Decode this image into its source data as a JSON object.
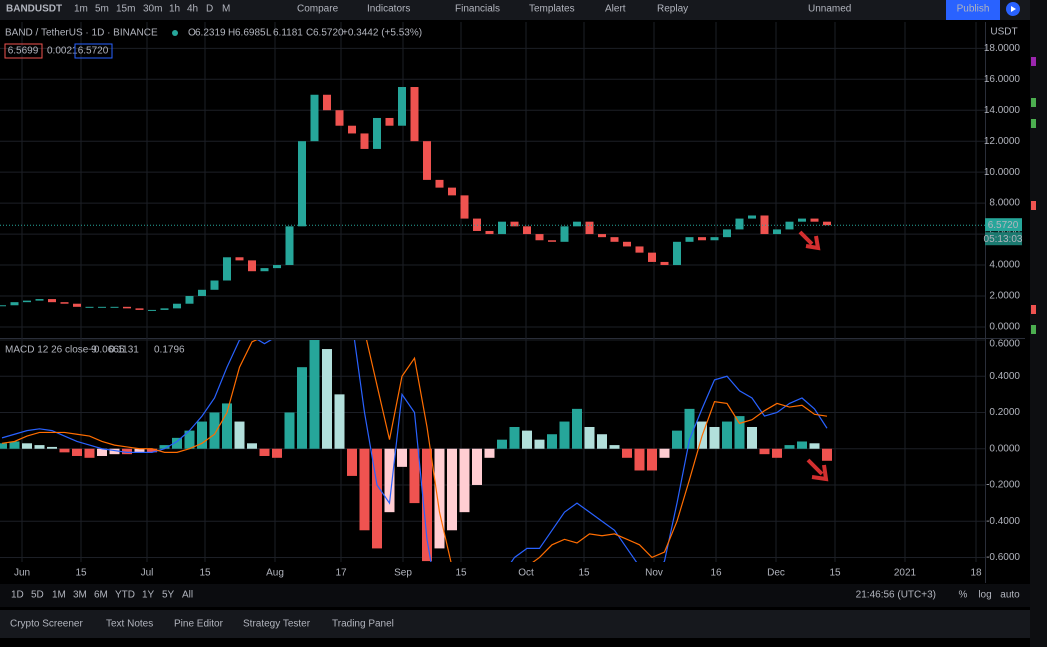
{
  "toolbar": {
    "symbol": "BANDUSDT",
    "intervals": [
      "1m",
      "5m",
      "15m",
      "30m",
      "1h",
      "4h",
      "D",
      "M"
    ],
    "active_interval": "D",
    "buttons": [
      "Compare",
      "Indicators",
      "Financials",
      "Templates",
      "Alert",
      "Replay"
    ],
    "layout_name": "Unnamed",
    "publish": "Publish"
  },
  "legend": {
    "title": "BAND / TetherUS · 1D · BINANCE",
    "ohlc": [
      {
        "label": "O",
        "value": "6.2319"
      },
      {
        "label": "H",
        "value": "6.6985"
      },
      {
        "label": "L",
        "value": "6.1181"
      },
      {
        "label": "C",
        "value": "6.5720"
      }
    ],
    "change": "+0.3442 (+5.53%)",
    "bid": "6.5699",
    "spread": "0.0021",
    "ask": "6.5720"
  },
  "price_chart": {
    "type": "candlestick",
    "currency": "USDT",
    "up_color": "#26a69a",
    "down_color": "#ef5350",
    "closes": [
      1.4,
      1.6,
      1.7,
      1.8,
      1.6,
      1.5,
      1.3,
      1.3,
      1.3,
      1.3,
      1.2,
      1.1,
      1.1,
      1.2,
      1.5,
      2.0,
      2.4,
      3.0,
      4.5,
      4.3,
      3.6,
      3.8,
      4.0,
      6.5,
      12.0,
      15.0,
      14.0,
      13.0,
      12.5,
      11.5,
      13.5,
      13.0,
      15.5,
      12.0,
      9.5,
      9.0,
      8.5,
      7.0,
      6.2,
      6.0,
      6.8,
      6.5,
      6.0,
      5.6,
      5.5,
      6.5,
      6.8,
      6.0,
      5.8,
      5.5,
      5.2,
      4.8,
      4.2,
      4.0,
      5.5,
      5.8,
      5.6,
      5.8,
      6.3,
      7.0,
      7.2,
      6.0,
      6.3,
      6.8,
      7.0,
      6.8,
      6.572
    ],
    "ylim": [
      -0.65,
      19.7
    ],
    "yticks": [
      {
        "value": 18,
        "label": "18.0000"
      },
      {
        "value": 16,
        "label": "16.0000"
      },
      {
        "value": 14,
        "label": "14.0000"
      },
      {
        "value": 12,
        "label": "12.0000"
      },
      {
        "value": 10,
        "label": "10.0000"
      },
      {
        "value": 8,
        "label": "8.0000"
      },
      {
        "value": 6,
        "label": "6.0000"
      },
      {
        "value": 4,
        "label": "4.0000"
      },
      {
        "value": 2,
        "label": "2.0000"
      },
      {
        "value": 0,
        "label": "0.0000"
      }
    ],
    "last_price": {
      "value": 6.572,
      "label": "6.5720"
    },
    "countdown": "05:13:03"
  },
  "macd": {
    "type": "macd",
    "title": "MACD 12 26 close 9",
    "legend_values": [
      "−0.0665",
      "0.1131",
      "0.1796"
    ],
    "macd_color": "#2962ff",
    "signal_color": "#ff6d00",
    "histogram": [
      0.03,
      0.04,
      0.03,
      0.02,
      0.01,
      -0.02,
      -0.04,
      -0.05,
      -0.04,
      -0.03,
      -0.03,
      -0.02,
      -0.02,
      0.02,
      0.06,
      0.1,
      0.15,
      0.2,
      0.25,
      0.15,
      0.03,
      -0.04,
      -0.05,
      0.2,
      0.45,
      0.62,
      0.55,
      0.3,
      -0.15,
      -0.45,
      -0.55,
      -0.35,
      -0.1,
      -0.3,
      -0.62,
      -0.55,
      -0.45,
      -0.35,
      -0.2,
      -0.05,
      0.05,
      0.12,
      0.1,
      0.05,
      0.08,
      0.15,
      0.22,
      0.12,
      0.08,
      0.02,
      -0.05,
      -0.12,
      -0.12,
      -0.05,
      0.1,
      0.22,
      0.15,
      0.12,
      0.15,
      0.18,
      0.12,
      -0.03,
      -0.05,
      0.02,
      0.04,
      0.03,
      -0.0665
    ],
    "macd": [
      0.06,
      0.08,
      0.1,
      0.11,
      0.1,
      0.07,
      0.04,
      0.02,
      0.0,
      -0.01,
      -0.02,
      -0.02,
      -0.02,
      0.0,
      0.04,
      0.1,
      0.18,
      0.28,
      0.45,
      0.6,
      0.62,
      0.58,
      0.62,
      0.85,
      1.3,
      1.6,
      1.5,
      1.2,
      0.7,
      0.2,
      -0.2,
      -0.3,
      0.3,
      0.2,
      -0.5,
      -0.9,
      -1.1,
      -1.1,
      -1.0,
      -0.85,
      -0.7,
      -0.6,
      -0.55,
      -0.55,
      -0.45,
      -0.35,
      -0.3,
      -0.35,
      -0.4,
      -0.45,
      -0.55,
      -0.65,
      -0.72,
      -0.62,
      -0.3,
      0.05,
      0.22,
      0.38,
      0.4,
      0.32,
      0.28,
      0.18,
      0.2,
      0.25,
      0.28,
      0.22,
      0.1131
    ],
    "signal": [
      0.03,
      0.04,
      0.07,
      0.09,
      0.09,
      0.09,
      0.08,
      0.07,
      0.04,
      0.02,
      0.01,
      0.0,
      0.0,
      -0.02,
      -0.02,
      0.0,
      0.03,
      0.08,
      0.2,
      0.45,
      0.59,
      0.62,
      0.67,
      0.65,
      0.85,
      0.98,
      0.95,
      0.9,
      0.85,
      0.65,
      0.35,
      0.05,
      0.4,
      0.5,
      0.12,
      -0.35,
      -0.65,
      -0.75,
      -0.8,
      -0.8,
      -0.75,
      -0.72,
      -0.65,
      -0.6,
      -0.53,
      -0.5,
      -0.52,
      -0.47,
      -0.48,
      -0.47,
      -0.5,
      -0.53,
      -0.6,
      -0.57,
      -0.4,
      -0.17,
      0.07,
      0.26,
      0.25,
      0.14,
      0.16,
      0.21,
      0.25,
      0.23,
      0.24,
      0.19,
      0.1796
    ],
    "ylim": [
      -0.625,
      0.6
    ],
    "yticks": [
      {
        "value": 0.6,
        "label": "0.6000"
      },
      {
        "value": 0.4,
        "label": "0.4000"
      },
      {
        "value": 0.2,
        "label": "0.2000"
      },
      {
        "value": 0,
        "label": "0.0000"
      },
      {
        "value": -0.2,
        "label": "-0.2000"
      },
      {
        "value": -0.4,
        "label": "-0.4000"
      },
      {
        "value": -0.6,
        "label": "-0.6000"
      }
    ]
  },
  "time_axis": [
    "Jun",
    "15",
    "Jul",
    "15",
    "Aug",
    "17",
    "Sep",
    "15",
    "Oct",
    "15",
    "Nov",
    "16",
    "Dec",
    "15",
    "2021",
    "18"
  ],
  "ranges": [
    "1D",
    "5D",
    "1M",
    "3M",
    "6M",
    "YTD",
    "1Y",
    "5Y",
    "All"
  ],
  "clock": "21:46:56 (UTC+3)",
  "scale_options": [
    "%",
    "log",
    "auto"
  ],
  "panel_tabs": [
    "Crypto Screener",
    "Text Notes",
    "Pine Editor",
    "Strategy Tester",
    "Trading Panel"
  ]
}
